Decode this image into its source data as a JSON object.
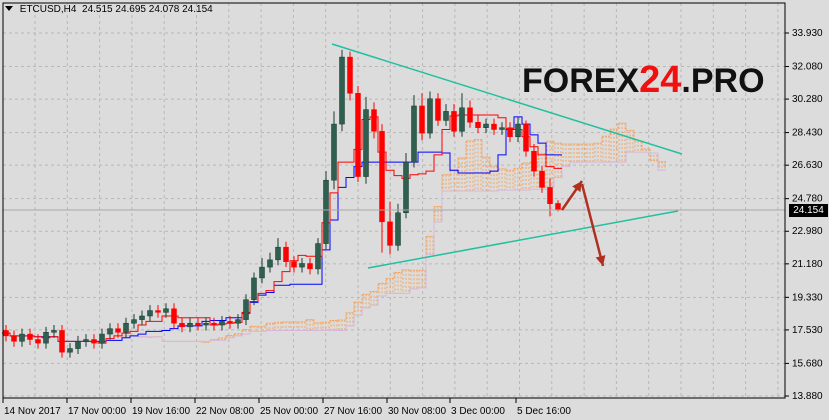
{
  "header": {
    "symbol": "ETCUSD,H4",
    "ohlc": "24.515 24.695 24.078 24.154"
  },
  "logo": {
    "part1": "FOREX",
    "part2": "24",
    "part3": ".PRO"
  },
  "colors": {
    "background": "#dcdcdc",
    "bull": "#2f5f4f",
    "bear": "#ff0000",
    "tenkan": "#ff0000",
    "kijun": "#0000ff",
    "cloud": "#f4a460",
    "trendline": "#20c0a0",
    "arrow": "#b03020"
  },
  "chart_data": {
    "type": "candlestick",
    "title": "ETCUSD,H4",
    "ylim": [
      13.88,
      33.93
    ],
    "grid": true,
    "y_ticks": [
      "33.930",
      "32.080",
      "30.280",
      "28.430",
      "26.630",
      "24.780",
      "22.980",
      "21.180",
      "19.330",
      "17.530",
      "15.680",
      "13.880"
    ],
    "x_ticks": [
      "14 Nov 2017",
      "17 Nov 00:00",
      "19 Nov 16:00",
      "22 Nov 08:00",
      "25 Nov 00:00",
      "27 Nov 16:00",
      "30 Nov 08:00",
      "3 Dec 00:00",
      "5 Dec 16:00"
    ],
    "current_price": "24.154",
    "open": [
      17.5,
      17.2,
      16.9,
      17.3,
      17.0,
      16.8,
      17.4,
      17.5,
      16.3,
      16.5,
      16.9,
      17.0,
      16.8,
      17.3,
      17.6,
      17.4,
      17.9,
      18.1,
      18.3,
      18.6,
      18.5,
      18.7,
      17.9,
      17.7,
      17.9,
      17.8,
      17.9,
      17.8,
      18.0,
      17.9,
      18.1,
      19.2,
      20.4,
      21.0,
      21.4,
      22.1,
      21.3,
      21.0,
      21.2,
      20.9,
      22.3,
      25.8,
      28.9,
      32.6,
      30.6,
      26.0,
      29.7,
      28.5,
      23.5,
      22.2,
      24.0,
      26.8,
      29.9,
      28.4,
      30.3,
      29.1,
      29.6,
      28.5,
      29.8,
      29.0,
      28.7,
      28.9,
      28.6,
      28.7,
      28.2,
      28.9,
      27.4,
      26.3,
      25.4,
      24.515
    ],
    "high": [
      17.8,
      17.5,
      17.6,
      17.6,
      17.3,
      17.7,
      17.8,
      17.8,
      16.8,
      17.2,
      17.3,
      17.3,
      17.6,
      17.9,
      17.9,
      18.2,
      18.4,
      18.6,
      18.9,
      18.9,
      19.0,
      19.0,
      18.2,
      18.2,
      18.2,
      18.2,
      18.2,
      18.3,
      18.3,
      18.4,
      19.5,
      20.7,
      21.5,
      21.8,
      22.6,
      22.4,
      21.6,
      21.5,
      21.5,
      22.6,
      26.3,
      29.6,
      33.0,
      32.9,
      31.0,
      30.4,
      30.1,
      28.9,
      24.6,
      24.5,
      27.3,
      30.5,
      30.6,
      30.7,
      30.6,
      30.0,
      30.0,
      30.6,
      30.2,
      29.4,
      29.2,
      29.2,
      29.0,
      29.0,
      29.3,
      29.1,
      27.8,
      26.6,
      25.9,
      24.695
    ],
    "low": [
      16.9,
      16.6,
      16.6,
      16.7,
      16.5,
      16.5,
      17.1,
      16.0,
      16.0,
      16.2,
      16.6,
      16.5,
      16.5,
      17.0,
      17.1,
      17.1,
      17.6,
      17.8,
      18.0,
      18.2,
      18.2,
      17.6,
      17.4,
      17.4,
      17.5,
      17.5,
      17.5,
      17.5,
      17.6,
      17.6,
      17.8,
      18.9,
      20.1,
      20.7,
      21.1,
      21.0,
      20.7,
      20.7,
      20.6,
      20.6,
      22.0,
      25.3,
      28.5,
      30.2,
      25.7,
      25.6,
      28.1,
      21.8,
      21.7,
      21.9,
      23.7,
      26.5,
      28.0,
      28.1,
      28.8,
      28.8,
      28.2,
      28.2,
      28.7,
      28.4,
      28.4,
      28.3,
      28.3,
      27.9,
      27.9,
      27.1,
      26.0,
      25.1,
      23.8,
      24.078
    ],
    "close": [
      17.2,
      16.9,
      17.3,
      17.0,
      16.8,
      17.4,
      17.5,
      16.3,
      16.5,
      16.9,
      17.0,
      16.8,
      17.3,
      17.6,
      17.4,
      17.9,
      18.1,
      18.3,
      18.6,
      18.5,
      18.7,
      17.9,
      17.7,
      17.9,
      17.8,
      17.9,
      17.8,
      18.0,
      17.9,
      18.1,
      19.2,
      20.4,
      21.0,
      21.4,
      22.1,
      21.3,
      21.0,
      21.2,
      20.9,
      22.3,
      25.8,
      28.9,
      32.6,
      30.6,
      26.0,
      29.7,
      28.5,
      23.5,
      22.2,
      24.0,
      26.8,
      29.9,
      28.4,
      30.3,
      29.1,
      29.6,
      28.5,
      29.8,
      29.0,
      28.7,
      28.9,
      28.6,
      28.7,
      28.2,
      28.9,
      27.4,
      26.3,
      25.4,
      24.5,
      24.154
    ]
  }
}
